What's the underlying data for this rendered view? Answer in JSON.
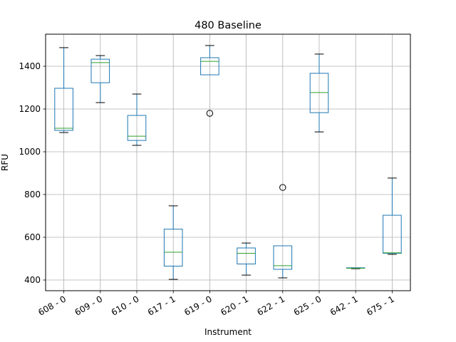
{
  "chart_data": {
    "type": "box",
    "title": "480 Baseline",
    "xlabel": "Instrument",
    "ylabel": "RFU",
    "ylim": [
      350,
      1550
    ],
    "yticks": [
      400,
      600,
      800,
      1000,
      1200,
      1400
    ],
    "grid": true,
    "categories": [
      "608 - 0",
      "609 - 0",
      "610 - 0",
      "617 - 1",
      "619 - 0",
      "620 - 1",
      "622 - 1",
      "625 - 0",
      "642 - 1",
      "675 - 1"
    ],
    "boxes": [
      {
        "category": "608 - 0",
        "whisker_low": 1090,
        "q1": 1100,
        "median": 1110,
        "q3": 1297,
        "whisker_high": 1487,
        "outliers": []
      },
      {
        "category": "609 - 0",
        "whisker_low": 1230,
        "q1": 1323,
        "median": 1417,
        "q3": 1433,
        "whisker_high": 1450,
        "outliers": []
      },
      {
        "category": "610 - 0",
        "whisker_low": 1030,
        "q1": 1053,
        "median": 1073,
        "q3": 1170,
        "whisker_high": 1270,
        "outliers": []
      },
      {
        "category": "617 - 1",
        "whisker_low": 403,
        "q1": 465,
        "median": 530,
        "q3": 638,
        "whisker_high": 747,
        "outliers": []
      },
      {
        "category": "619 - 0",
        "whisker_low": 1360,
        "q1": 1360,
        "median": 1423,
        "q3": 1440,
        "whisker_high": 1497,
        "outliers": [
          1180
        ]
      },
      {
        "category": "620 - 1",
        "whisker_low": 423,
        "q1": 475,
        "median": 525,
        "q3": 550,
        "whisker_high": 573,
        "outliers": []
      },
      {
        "category": "622 - 1",
        "whisker_low": 410,
        "q1": 450,
        "median": 467,
        "q3": 560,
        "whisker_high": 560,
        "outliers": [
          833
        ]
      },
      {
        "category": "625 - 0",
        "whisker_low": 1093,
        "q1": 1183,
        "median": 1277,
        "q3": 1367,
        "whisker_high": 1457,
        "outliers": []
      },
      {
        "category": "642 - 1",
        "whisker_low": 453,
        "q1": 455,
        "median": 455,
        "q3": 457,
        "whisker_high": 457,
        "outliers": []
      },
      {
        "category": "675 - 1",
        "whisker_low": 520,
        "q1": 525,
        "median": 527,
        "q3": 703,
        "whisker_high": 877,
        "outliers": []
      }
    ],
    "colors": {
      "box": "#1f77b4",
      "median": "#2ca02c",
      "whisker": "#1f77b4",
      "cap": "#000000",
      "grid": "#b0b0b0",
      "outlier": "#000000"
    }
  }
}
